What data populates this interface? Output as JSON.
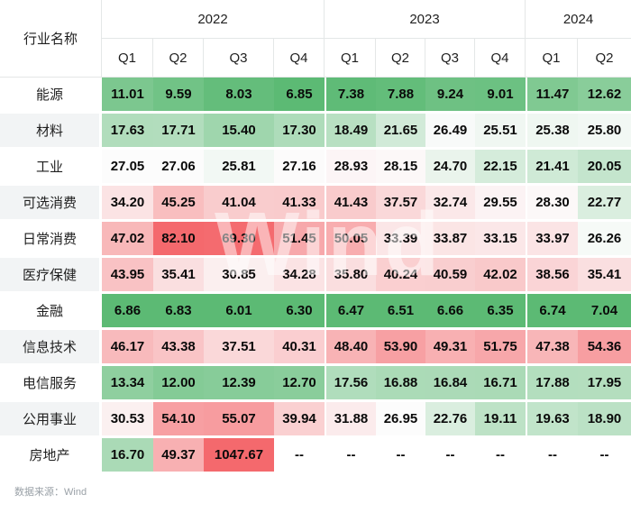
{
  "header": {
    "corner_label": "行业名称"
  },
  "footer": {
    "source_note": "数据来源：Wind"
  },
  "watermark": {
    "text": "Wind"
  },
  "colors": {
    "heat_low_green": "#5cba74",
    "heat_mid_white": "#fcfcfc",
    "heat_high_red": "#f4696d",
    "label_alt_row_bg": "#f2f4f5",
    "header_border": "#e4e7e7"
  },
  "chart_data": {
    "type": "heatmap",
    "title": "",
    "row_label_header": "行业名称",
    "year_groups": [
      {
        "label": "2022",
        "cols": 4
      },
      {
        "label": "2023",
        "cols": 4
      },
      {
        "label": "2024",
        "cols": 2
      }
    ],
    "quarter_labels": [
      "Q1",
      "Q2",
      "Q3",
      "Q4",
      "Q1",
      "Q2",
      "Q3",
      "Q4",
      "Q1",
      "Q2"
    ],
    "columns": [
      "2022Q1",
      "2022Q2",
      "2022Q3",
      "2022Q4",
      "2023Q1",
      "2023Q2",
      "2023Q3",
      "2023Q4",
      "2024Q1",
      "2024Q2"
    ],
    "rows": [
      {
        "label": "能源",
        "values": [
          11.01,
          9.59,
          8.03,
          6.85,
          7.38,
          7.88,
          9.24,
          9.01,
          11.47,
          12.62
        ]
      },
      {
        "label": "材料",
        "values": [
          17.63,
          17.71,
          15.4,
          17.3,
          18.49,
          21.65,
          26.49,
          25.51,
          25.38,
          25.8
        ]
      },
      {
        "label": "工业",
        "values": [
          27.05,
          27.06,
          25.81,
          27.16,
          28.93,
          28.15,
          24.7,
          22.15,
          21.41,
          20.05
        ]
      },
      {
        "label": "可选消费",
        "values": [
          34.2,
          45.25,
          41.04,
          41.33,
          41.43,
          37.57,
          32.74,
          29.55,
          28.3,
          22.77
        ]
      },
      {
        "label": "日常消费",
        "values": [
          47.02,
          82.1,
          69.3,
          51.45,
          50.05,
          33.39,
          33.87,
          33.15,
          33.97,
          26.26
        ]
      },
      {
        "label": "医疗保健",
        "values": [
          43.95,
          35.41,
          30.85,
          34.28,
          35.8,
          40.24,
          40.59,
          42.02,
          38.56,
          35.41
        ]
      },
      {
        "label": "金融",
        "values": [
          6.86,
          6.83,
          6.01,
          6.3,
          6.47,
          6.51,
          6.66,
          6.35,
          6.74,
          7.04
        ]
      },
      {
        "label": "信息技术",
        "values": [
          46.17,
          43.38,
          37.51,
          40.31,
          48.4,
          53.9,
          49.31,
          51.75,
          47.38,
          54.36
        ]
      },
      {
        "label": "电信服务",
        "values": [
          13.34,
          12.0,
          12.39,
          12.7,
          17.56,
          16.88,
          16.84,
          16.71,
          17.88,
          17.95
        ]
      },
      {
        "label": "公用事业",
        "values": [
          30.53,
          54.1,
          55.07,
          39.94,
          31.88,
          26.95,
          22.76,
          19.11,
          19.63,
          18.9
        ]
      },
      {
        "label": "房地产",
        "values": [
          16.7,
          49.37,
          1047.67,
          null,
          null,
          null,
          null,
          null,
          null,
          null
        ]
      }
    ],
    "missing_marker": "--",
    "color_scale": {
      "low_color": "#5cba74",
      "mid_color": "#fcfcfc",
      "high_color": "#f4696d",
      "low_at": 7,
      "mid_at": 27,
      "high_at": 70
    },
    "source": "数据来源：Wind"
  }
}
